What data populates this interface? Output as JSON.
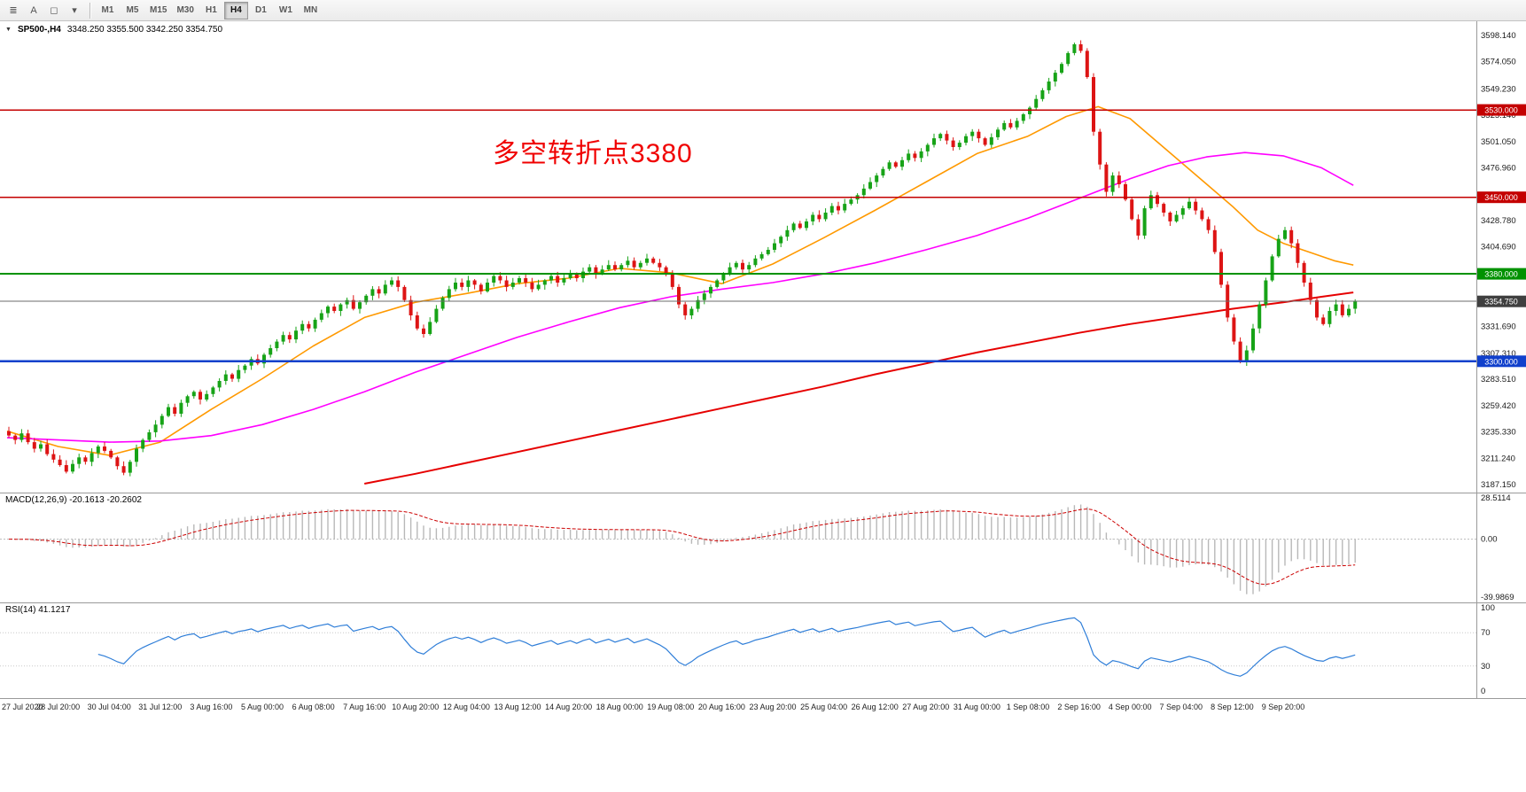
{
  "toolbar": {
    "tools": [
      {
        "name": "chart-list-icon",
        "glyph": "≣"
      },
      {
        "name": "text-tool-icon",
        "glyph": "A"
      },
      {
        "name": "shapes-tool-icon",
        "glyph": "◻"
      },
      {
        "name": "indicators-dropdown-icon",
        "glyph": "▾"
      }
    ],
    "timeframes": [
      "M1",
      "M5",
      "M15",
      "M30",
      "H1",
      "H4",
      "D1",
      "W1",
      "MN"
    ],
    "selected_timeframe": "H4"
  },
  "chart": {
    "symbol_period": "SP500-,H4",
    "ohlc_text": "3348.250 3355.500 3342.250 3354.750",
    "collapse_icon": "▼",
    "annotation": {
      "text": "多空转折点3380",
      "color": "#f00000"
    },
    "current_price": "3354.750",
    "axis_labels": [
      "3598.140",
      "3574.050",
      "3549.230",
      "3525.140",
      "3501.050",
      "3476.960",
      "3428.780",
      "3404.690",
      "3331.690",
      "3307.310",
      "3283.510",
      "3259.420",
      "3235.330",
      "3211.240",
      "3187.150"
    ],
    "levels": [
      {
        "price": 3530.0,
        "label": "3530.000",
        "color": "#c40000",
        "width": 1.4
      },
      {
        "price": 3450.0,
        "label": "3450.000",
        "color": "#c40000",
        "width": 1.4
      },
      {
        "price": 3380.0,
        "label": "3380.000",
        "color": "#009200",
        "width": 2.2
      },
      {
        "price": 3300.0,
        "label": "3300.000",
        "color": "#1040cc",
        "width": 2.4
      }
    ]
  },
  "macd": {
    "label": "MACD(12,26,9) -20.1613 -20.2602",
    "axis": [
      "28.5114",
      "0.00",
      "-39.9869"
    ]
  },
  "rsi": {
    "label": "RSI(14) 41.1217",
    "axis": [
      "100",
      "70",
      "30",
      "0"
    ]
  },
  "colors": {
    "candle_up": "#17a317",
    "candle_down": "#dd1414",
    "macd_hist": "#b8b8b8",
    "macd_signal": "#cc0000",
    "rsi_line": "#2f7ed8",
    "current_line": "#6b6b6b",
    "current_badge": "#3f3f3f",
    "axis_text": "#1a1a1a",
    "panel_border": "#9a9a9a"
  },
  "chart_data": {
    "type": "candlestick",
    "title": "SP500- H4",
    "ylim": [
      3187.15,
      3598.14
    ],
    "bars_per_label": 8,
    "first_open": 3236,
    "x_labels": [
      "27 Jul 2020",
      "28 Jul 20:00",
      "30 Jul 04:00",
      "31 Jul 12:00",
      "3 Aug 16:00",
      "5 Aug 00:00",
      "6 Aug 08:00",
      "7 Aug 16:00",
      "10 Aug 20:00",
      "12 Aug 04:00",
      "13 Aug 12:00",
      "14 Aug 20:00",
      "18 Aug 00:00",
      "19 Aug 08:00",
      "20 Aug 16:00",
      "23 Aug 20:00",
      "25 Aug 04:00",
      "26 Aug 12:00",
      "27 Aug 20:00",
      "31 Aug 00:00",
      "1 Sep 08:00",
      "2 Sep 16:00",
      "4 Sep 00:00",
      "7 Sep 04:00",
      "8 Sep 12:00",
      "9 Sep 20:00"
    ],
    "closes": [
      3232,
      3228,
      3234,
      3226,
      3220,
      3224,
      3215,
      3210,
      3205,
      3199,
      3206,
      3212,
      3208,
      3216,
      3222,
      3218,
      3212,
      3204,
      3198,
      3208,
      3220,
      3228,
      3235,
      3242,
      3250,
      3258,
      3252,
      3262,
      3268,
      3272,
      3265,
      3270,
      3276,
      3282,
      3288,
      3284,
      3292,
      3296,
      3302,
      3298,
      3306,
      3312,
      3318,
      3324,
      3320,
      3328,
      3334,
      3330,
      3338,
      3344,
      3350,
      3346,
      3352,
      3356,
      3348,
      3354,
      3360,
      3366,
      3362,
      3370,
      3374,
      3368,
      3356,
      3342,
      3330,
      3325,
      3336,
      3348,
      3358,
      3366,
      3372,
      3368,
      3374,
      3370,
      3364,
      3372,
      3378,
      3374,
      3368,
      3372,
      3376,
      3372,
      3366,
      3370,
      3374,
      3378,
      3372,
      3376,
      3380,
      3376,
      3382,
      3386,
      3380,
      3384,
      3388,
      3384,
      3388,
      3392,
      3386,
      3390,
      3394,
      3390,
      3386,
      3380,
      3368,
      3352,
      3342,
      3348,
      3356,
      3362,
      3368,
      3374,
      3380,
      3386,
      3390,
      3384,
      3388,
      3394,
      3398,
      3402,
      3408,
      3414,
      3420,
      3426,
      3422,
      3428,
      3434,
      3430,
      3436,
      3442,
      3438,
      3444,
      3448,
      3452,
      3458,
      3464,
      3470,
      3476,
      3482,
      3478,
      3484,
      3490,
      3486,
      3492,
      3498,
      3504,
      3508,
      3502,
      3496,
      3500,
      3506,
      3510,
      3504,
      3498,
      3505,
      3512,
      3518,
      3514,
      3520,
      3526,
      3532,
      3540,
      3548,
      3556,
      3564,
      3572,
      3582,
      3590,
      3584,
      3560,
      3510,
      3480,
      3455,
      3470,
      3462,
      3448,
      3430,
      3415,
      3440,
      3452,
      3444,
      3436,
      3428,
      3434,
      3440,
      3446,
      3438,
      3430,
      3420,
      3400,
      3370,
      3340,
      3318,
      3300,
      3310,
      3330,
      3352,
      3374,
      3396,
      3412,
      3420,
      3408,
      3390,
      3372,
      3356,
      3340,
      3334,
      3346,
      3352,
      3342,
      3348,
      3354.75
    ],
    "moving_averages": [
      {
        "name": "ma-fast",
        "color": "#ff9900",
        "width": 1.6,
        "points": [
          [
            0,
            3236
          ],
          [
            8,
            3222
          ],
          [
            16,
            3214
          ],
          [
            24,
            3226
          ],
          [
            32,
            3256
          ],
          [
            40,
            3284
          ],
          [
            48,
            3314
          ],
          [
            56,
            3340
          ],
          [
            64,
            3354
          ],
          [
            72,
            3362
          ],
          [
            80,
            3371
          ],
          [
            88,
            3376
          ],
          [
            96,
            3385
          ],
          [
            104,
            3381
          ],
          [
            112,
            3371
          ],
          [
            120,
            3389
          ],
          [
            128,
            3413
          ],
          [
            136,
            3438
          ],
          [
            144,
            3464
          ],
          [
            152,
            3490
          ],
          [
            160,
            3506
          ],
          [
            166,
            3524
          ],
          [
            171,
            3533
          ],
          [
            176,
            3522
          ],
          [
            182,
            3492
          ],
          [
            188,
            3462
          ],
          [
            192,
            3442
          ],
          [
            196,
            3420
          ],
          [
            200,
            3408
          ],
          [
            204,
            3400
          ],
          [
            208,
            3392
          ],
          [
            211,
            3388
          ]
        ]
      },
      {
        "name": "ma-mid",
        "color": "#ff00ff",
        "width": 1.6,
        "points": [
          [
            0,
            3230
          ],
          [
            8,
            3228
          ],
          [
            16,
            3226
          ],
          [
            24,
            3227
          ],
          [
            32,
            3232
          ],
          [
            40,
            3242
          ],
          [
            48,
            3256
          ],
          [
            56,
            3272
          ],
          [
            64,
            3290
          ],
          [
            72,
            3306
          ],
          [
            80,
            3322
          ],
          [
            88,
            3336
          ],
          [
            96,
            3349
          ],
          [
            104,
            3359
          ],
          [
            112,
            3366
          ],
          [
            120,
            3372
          ],
          [
            128,
            3380
          ],
          [
            136,
            3390
          ],
          [
            144,
            3402
          ],
          [
            152,
            3415
          ],
          [
            160,
            3431
          ],
          [
            168,
            3449
          ],
          [
            176,
            3467
          ],
          [
            182,
            3479
          ],
          [
            188,
            3487
          ],
          [
            194,
            3491
          ],
          [
            200,
            3488
          ],
          [
            206,
            3477
          ],
          [
            211,
            3461
          ]
        ]
      },
      {
        "name": "ma-slow",
        "color": "#e60000",
        "width": 2,
        "points": [
          [
            56,
            3188
          ],
          [
            64,
            3197
          ],
          [
            72,
            3207
          ],
          [
            80,
            3217
          ],
          [
            88,
            3227
          ],
          [
            96,
            3237
          ],
          [
            104,
            3247
          ],
          [
            112,
            3257
          ],
          [
            120,
            3267
          ],
          [
            128,
            3277
          ],
          [
            136,
            3288
          ],
          [
            144,
            3298
          ],
          [
            152,
            3308
          ],
          [
            160,
            3317
          ],
          [
            168,
            3326
          ],
          [
            176,
            3334
          ],
          [
            184,
            3341
          ],
          [
            192,
            3348
          ],
          [
            200,
            3354
          ],
          [
            206,
            3359
          ],
          [
            211,
            3363
          ]
        ]
      }
    ],
    "horizontal_lines": [
      3530,
      3450,
      3380,
      3300
    ],
    "current_price": 3354.75,
    "macd_display": {
      "value": -20.1613,
      "signal": -20.2602,
      "range": [
        -39.9869,
        28.5114
      ],
      "params": [
        12,
        26,
        9
      ]
    },
    "rsi_display": {
      "value": 41.1217,
      "period": 14,
      "range": [
        0,
        100
      ],
      "levels": [
        70,
        30
      ]
    }
  }
}
